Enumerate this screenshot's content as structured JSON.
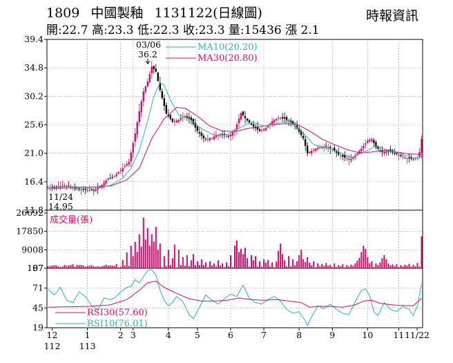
{
  "header": {
    "code": "1809",
    "name": "中國製釉",
    "period": "1131122(日線圖)",
    "source": "時報資訊",
    "ohlc": "開:22.7 高:23.3 低:22.3 收:23.3 量:15436 漲 2.1"
  },
  "colors": {
    "up": "#d6086a",
    "down": "#000000",
    "ma10": "#2bb0bf",
    "ma30": "#d6086a",
    "volume": "#d6086a",
    "rsi30": "#d6086a",
    "rsi10": "#2bb0bf"
  },
  "chart_data": [
    {
      "type": "candlestick",
      "name": "price",
      "ylim": [
        11.8,
        39.4
      ],
      "yticks": [
        "39.4",
        "34.8",
        "30.2",
        "25.6",
        "21.0",
        "16.4",
        "11.8"
      ],
      "legend": [
        {
          "name": "MA10(20.20)"
        },
        {
          "name": "MA30(20.80)"
        }
      ],
      "annotations": [
        {
          "date": "03/06",
          "label": "03/06",
          "value": 36.2,
          "value_label": "36.2"
        },
        {
          "date": "11/24",
          "label": "11/24",
          "value": 14.95,
          "value_label": "14.95"
        }
      ],
      "anchors": [
        [
          0,
          15.4
        ],
        [
          8,
          15.8
        ],
        [
          14,
          15.3
        ],
        [
          20,
          15.0
        ],
        [
          24,
          15.2
        ],
        [
          28,
          16.6
        ],
        [
          32,
          17.3
        ],
        [
          36,
          18.6
        ],
        [
          39,
          19.6
        ],
        [
          42,
          24.2
        ],
        [
          44,
          27.8
        ],
        [
          46,
          31.0
        ],
        [
          48,
          32.6
        ],
        [
          50,
          35.0
        ],
        [
          52,
          34.2
        ],
        [
          54,
          31.2
        ],
        [
          57,
          27.4
        ],
        [
          60,
          26.1
        ],
        [
          63,
          26.4
        ],
        [
          66,
          27.0
        ],
        [
          69,
          26.3
        ],
        [
          72,
          24.6
        ],
        [
          75,
          23.4
        ],
        [
          78,
          23.2
        ],
        [
          81,
          24.0
        ],
        [
          84,
          24.0
        ],
        [
          87,
          23.7
        ],
        [
          90,
          24.8
        ],
        [
          93,
          27.5
        ],
        [
          96,
          26.3
        ],
        [
          99,
          25.3
        ],
        [
          102,
          24.6
        ],
        [
          105,
          25.1
        ],
        [
          108,
          26.2
        ],
        [
          111,
          26.7
        ],
        [
          114,
          26.6
        ],
        [
          117,
          26.0
        ],
        [
          120,
          25.0
        ],
        [
          123,
          23.4
        ],
        [
          125,
          21.0
        ],
        [
          127,
          21.4
        ],
        [
          130,
          21.9
        ],
        [
          134,
          22.1
        ],
        [
          137,
          21.7
        ],
        [
          140,
          20.8
        ],
        [
          143,
          20.3
        ],
        [
          146,
          20.0
        ],
        [
          149,
          21.0
        ],
        [
          152,
          22.2
        ],
        [
          154,
          23.0
        ],
        [
          156,
          23.3
        ],
        [
          158,
          22.0
        ],
        [
          161,
          21.2
        ],
        [
          164,
          21.4
        ],
        [
          167,
          21.0
        ],
        [
          170,
          20.6
        ],
        [
          173,
          20.2
        ],
        [
          176,
          20.1
        ],
        [
          178,
          20.3
        ],
        [
          179,
          21.2
        ],
        [
          180,
          23.3
        ]
      ],
      "ma10_anchors": [
        [
          0,
          15.3
        ],
        [
          12,
          15.7
        ],
        [
          22,
          15.2
        ],
        [
          30,
          15.8
        ],
        [
          36,
          17.0
        ],
        [
          40,
          18.6
        ],
        [
          44,
          21.5
        ],
        [
          48,
          26.2
        ],
        [
          51,
          30.2
        ],
        [
          54,
          32.4
        ],
        [
          56,
          32.0
        ],
        [
          59,
          29.6
        ],
        [
          63,
          27.2
        ],
        [
          68,
          26.6
        ],
        [
          74,
          25.0
        ],
        [
          80,
          23.9
        ],
        [
          86,
          24.0
        ],
        [
          92,
          25.0
        ],
        [
          98,
          26.1
        ],
        [
          104,
          25.4
        ],
        [
          110,
          25.8
        ],
        [
          116,
          26.3
        ],
        [
          122,
          24.6
        ],
        [
          128,
          22.4
        ],
        [
          134,
          21.9
        ],
        [
          140,
          21.2
        ],
        [
          146,
          20.3
        ],
        [
          152,
          21.1
        ],
        [
          158,
          22.2
        ],
        [
          164,
          21.5
        ],
        [
          170,
          20.9
        ],
        [
          176,
          20.3
        ],
        [
          180,
          20.2
        ]
      ],
      "ma30_anchors": [
        [
          0,
          15.3
        ],
        [
          20,
          15.5
        ],
        [
          30,
          15.7
        ],
        [
          38,
          16.7
        ],
        [
          44,
          18.6
        ],
        [
          50,
          23.4
        ],
        [
          56,
          26.6
        ],
        [
          62,
          28.4
        ],
        [
          66,
          28.3
        ],
        [
          72,
          27.0
        ],
        [
          78,
          25.4
        ],
        [
          84,
          24.6
        ],
        [
          90,
          24.5
        ],
        [
          96,
          25.0
        ],
        [
          102,
          25.3
        ],
        [
          108,
          25.6
        ],
        [
          114,
          25.8
        ],
        [
          120,
          25.7
        ],
        [
          126,
          24.6
        ],
        [
          132,
          23.3
        ],
        [
          138,
          22.4
        ],
        [
          144,
          21.6
        ],
        [
          150,
          21.1
        ],
        [
          156,
          21.2
        ],
        [
          162,
          21.5
        ],
        [
          168,
          21.2
        ],
        [
          174,
          20.9
        ],
        [
          180,
          20.8
        ]
      ]
    },
    {
      "type": "bar",
      "name": "volume",
      "ylim": [
        167,
        26692
      ],
      "yticks": [
        "26692",
        "17850",
        "9008",
        "167"
      ],
      "label": "成交量(張)",
      "spikes": [
        [
          2,
          1500
        ],
        [
          6,
          900
        ],
        [
          9,
          1400
        ],
        [
          12,
          2100
        ],
        [
          16,
          1800
        ],
        [
          18,
          900
        ],
        [
          22,
          1200
        ],
        [
          25,
          900
        ],
        [
          28,
          1900
        ],
        [
          30,
          1500
        ],
        [
          33,
          2200
        ],
        [
          36,
          4100
        ],
        [
          38,
          7800
        ],
        [
          40,
          11000
        ],
        [
          41,
          6000
        ],
        [
          42,
          12800
        ],
        [
          43,
          8000
        ],
        [
          44,
          16500
        ],
        [
          45,
          10500
        ],
        [
          46,
          24500
        ],
        [
          47,
          14000
        ],
        [
          48,
          19500
        ],
        [
          49,
          11000
        ],
        [
          50,
          16500
        ],
        [
          51,
          13000
        ],
        [
          52,
          20000
        ],
        [
          53,
          9000
        ],
        [
          54,
          12000
        ],
        [
          56,
          6000
        ],
        [
          58,
          9000
        ],
        [
          60,
          5000
        ],
        [
          61,
          11500
        ],
        [
          63,
          9000
        ],
        [
          65,
          5500
        ],
        [
          67,
          6500
        ],
        [
          69,
          4000
        ],
        [
          70,
          7000
        ],
        [
          72,
          3500
        ],
        [
          74,
          4500
        ],
        [
          76,
          3000
        ],
        [
          78,
          3500
        ],
        [
          80,
          2500
        ],
        [
          82,
          4000
        ],
        [
          84,
          2500
        ],
        [
          86,
          3000
        ],
        [
          88,
          6500
        ],
        [
          90,
          11000
        ],
        [
          91,
          13500
        ],
        [
          92,
          8000
        ],
        [
          93,
          9500
        ],
        [
          94,
          7000
        ],
        [
          95,
          10000
        ],
        [
          96,
          5000
        ],
        [
          98,
          6500
        ],
        [
          99,
          4000
        ],
        [
          100,
          6000
        ],
        [
          102,
          3500
        ],
        [
          104,
          4500
        ],
        [
          105,
          2800
        ],
        [
          106,
          4200
        ],
        [
          108,
          3000
        ],
        [
          110,
          3400
        ],
        [
          111,
          8500
        ],
        [
          112,
          12000
        ],
        [
          113,
          7000
        ],
        [
          114,
          4000
        ],
        [
          116,
          6000
        ],
        [
          118,
          4500
        ],
        [
          120,
          3500
        ],
        [
          121,
          6500
        ],
        [
          122,
          9000
        ],
        [
          123,
          4500
        ],
        [
          124,
          3200
        ],
        [
          125,
          5500
        ],
        [
          126,
          2800
        ],
        [
          128,
          3500
        ],
        [
          130,
          2500
        ],
        [
          132,
          2200
        ],
        [
          134,
          2700
        ],
        [
          136,
          1900
        ],
        [
          138,
          2500
        ],
        [
          140,
          1700
        ],
        [
          142,
          2100
        ],
        [
          144,
          1700
        ],
        [
          146,
          1900
        ],
        [
          148,
          2500
        ],
        [
          149,
          3800
        ],
        [
          150,
          5200
        ],
        [
          151,
          8000
        ],
        [
          152,
          11000
        ],
        [
          153,
          9500
        ],
        [
          154,
          5500
        ],
        [
          155,
          2500
        ],
        [
          156,
          3500
        ],
        [
          158,
          2500
        ],
        [
          160,
          3000
        ],
        [
          161,
          5000
        ],
        [
          162,
          6500
        ],
        [
          163,
          4500
        ],
        [
          164,
          2500
        ],
        [
          166,
          2000
        ],
        [
          168,
          2100
        ],
        [
          170,
          1700
        ],
        [
          172,
          1900
        ],
        [
          174,
          2300
        ],
        [
          176,
          1900
        ],
        [
          178,
          2700
        ],
        [
          180,
          15436
        ]
      ]
    },
    {
      "type": "line",
      "name": "rsi",
      "ylim": [
        19,
        97
      ],
      "yticks": [
        "97",
        "71",
        "45",
        "19"
      ],
      "legend": [
        {
          "name": "RSI30(57.60)"
        },
        {
          "name": "RSI10(76.01)"
        }
      ],
      "rsi10_anchors": [
        [
          0,
          70
        ],
        [
          3,
          62
        ],
        [
          6,
          72
        ],
        [
          9,
          55
        ],
        [
          12,
          52
        ],
        [
          15,
          66
        ],
        [
          18,
          60
        ],
        [
          21,
          48
        ],
        [
          24,
          42
        ],
        [
          27,
          58
        ],
        [
          30,
          56
        ],
        [
          32,
          58
        ],
        [
          35,
          66
        ],
        [
          38,
          72
        ],
        [
          40,
          73
        ],
        [
          42,
          82
        ],
        [
          44,
          78
        ],
        [
          46,
          86
        ],
        [
          48,
          94
        ],
        [
          50,
          95
        ],
        [
          52,
          88
        ],
        [
          54,
          68
        ],
        [
          56,
          55
        ],
        [
          58,
          48
        ],
        [
          60,
          52
        ],
        [
          62,
          60
        ],
        [
          65,
          53
        ],
        [
          68,
          36
        ],
        [
          70,
          31
        ],
        [
          73,
          46
        ],
        [
          76,
          62
        ],
        [
          79,
          55
        ],
        [
          82,
          50
        ],
        [
          85,
          57
        ],
        [
          88,
          63
        ],
        [
          91,
          60
        ],
        [
          94,
          75
        ],
        [
          97,
          58
        ],
        [
          100,
          52
        ],
        [
          103,
          50
        ],
        [
          106,
          56
        ],
        [
          109,
          60
        ],
        [
          112,
          54
        ],
        [
          115,
          43
        ],
        [
          118,
          38
        ],
        [
          121,
          40
        ],
        [
          124,
          28
        ],
        [
          125,
          22
        ],
        [
          127,
          33
        ],
        [
          130,
          48
        ],
        [
          133,
          44
        ],
        [
          136,
          50
        ],
        [
          139,
          43
        ],
        [
          142,
          38
        ],
        [
          145,
          36
        ],
        [
          148,
          53
        ],
        [
          151,
          68
        ],
        [
          153,
          70
        ],
        [
          155,
          61
        ],
        [
          157,
          40
        ],
        [
          159,
          35
        ],
        [
          162,
          52
        ],
        [
          165,
          43
        ],
        [
          168,
          40
        ],
        [
          171,
          47
        ],
        [
          174,
          43
        ],
        [
          176,
          35
        ],
        [
          178,
          48
        ],
        [
          180,
          76
        ]
      ],
      "rsi30_anchors": [
        [
          0,
          46
        ],
        [
          20,
          47
        ],
        [
          30,
          49
        ],
        [
          38,
          56
        ],
        [
          44,
          68
        ],
        [
          48,
          78
        ],
        [
          52,
          80
        ],
        [
          56,
          72
        ],
        [
          62,
          64
        ],
        [
          68,
          57
        ],
        [
          74,
          54
        ],
        [
          80,
          54
        ],
        [
          86,
          55
        ],
        [
          92,
          58
        ],
        [
          98,
          56
        ],
        [
          104,
          55
        ],
        [
          110,
          56
        ],
        [
          116,
          54
        ],
        [
          122,
          52
        ],
        [
          126,
          46
        ],
        [
          130,
          47
        ],
        [
          136,
          47
        ],
        [
          142,
          46
        ],
        [
          148,
          49
        ],
        [
          152,
          54
        ],
        [
          156,
          55
        ],
        [
          160,
          51
        ],
        [
          166,
          49
        ],
        [
          172,
          48
        ],
        [
          176,
          48
        ],
        [
          180,
          57.6
        ]
      ]
    }
  ],
  "x_axis": {
    "n_days": 181,
    "months": [
      {
        "label": "12",
        "year": "112",
        "day": 2
      },
      {
        "label": "1",
        "year": "113",
        "day": 24
      },
      {
        "label": "2",
        "day": 45
      },
      {
        "label": "3",
        "day": 52
      },
      {
        "label": "4",
        "day": 74
      },
      {
        "label": "5",
        "day": 92
      },
      {
        "label": "6",
        "day": 113
      },
      {
        "label": "7",
        "day": 133
      },
      {
        "label": "8",
        "day": 155
      },
      {
        "label": "9",
        "day": 176
      },
      {
        "label": "10",
        "day": 197
      },
      {
        "label": "11",
        "day": 217
      },
      {
        "label": "11/22",
        "day": 229
      }
    ]
  }
}
